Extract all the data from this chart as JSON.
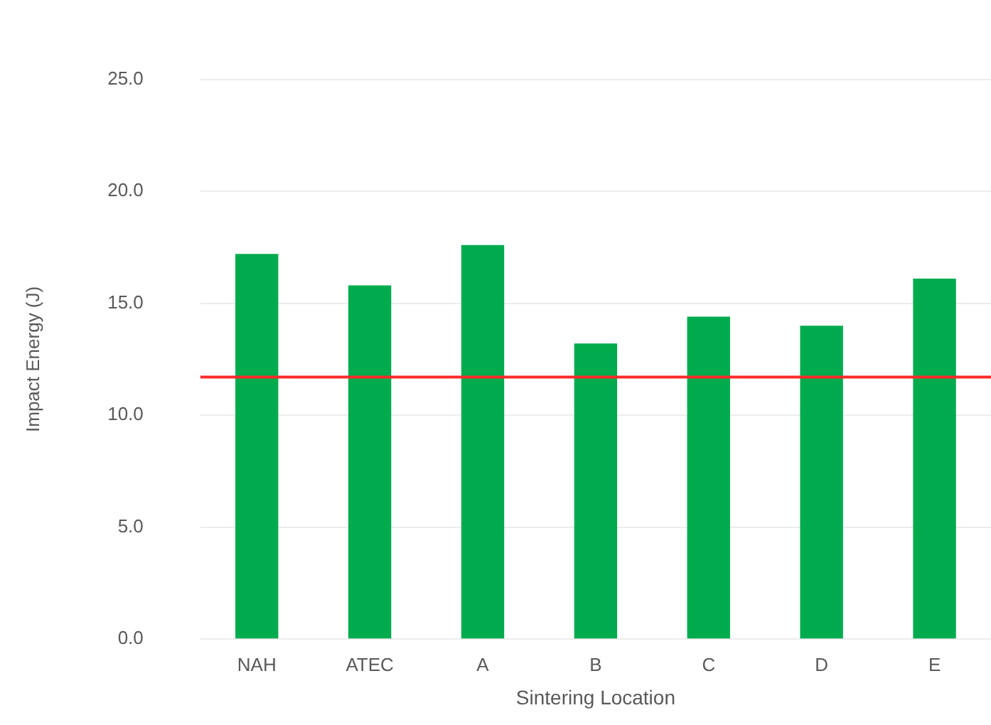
{
  "chart_data": {
    "type": "bar",
    "xlabel": "Sintering Location",
    "ylabel": "Impact Energy (J)",
    "categories": [
      "NAH",
      "ATEC",
      "A",
      "B",
      "C",
      "D",
      "E"
    ],
    "values": [
      17.2,
      15.8,
      17.6,
      13.2,
      14.4,
      14.0,
      16.1
    ],
    "color": "#00ab4e",
    "ylim": [
      0,
      25
    ],
    "yticks": [
      {
        "value": 0,
        "label": "0.0"
      },
      {
        "value": 5,
        "label": "5.0"
      },
      {
        "value": 10,
        "label": "10.0"
      },
      {
        "value": 15,
        "label": "15.0"
      },
      {
        "value": 20,
        "label": "20.0"
      },
      {
        "value": 25,
        "label": "25.0"
      }
    ],
    "grid": "y",
    "ref_lines": [
      {
        "axis": "y",
        "value": 11.7,
        "color": "#ff2a2a"
      }
    ]
  }
}
